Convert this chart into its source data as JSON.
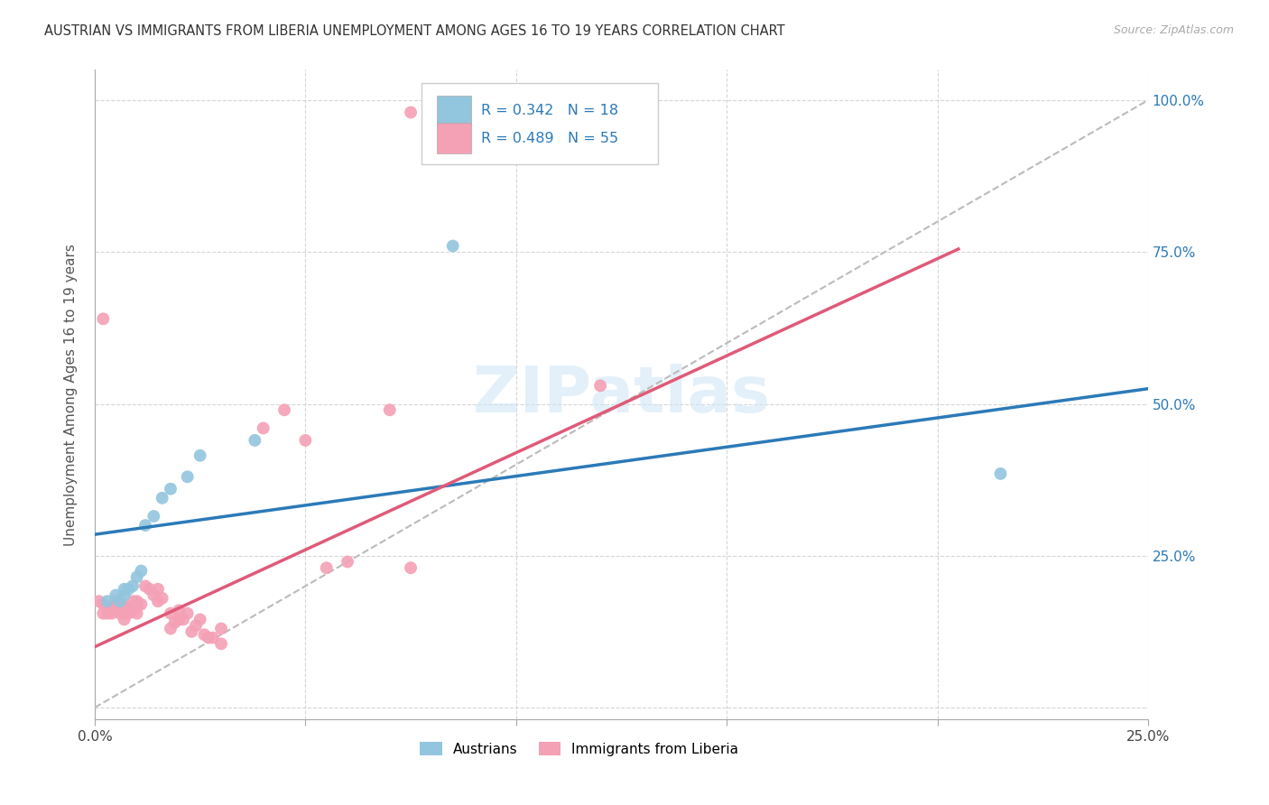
{
  "title": "AUSTRIAN VS IMMIGRANTS FROM LIBERIA UNEMPLOYMENT AMONG AGES 16 TO 19 YEARS CORRELATION CHART",
  "source": "Source: ZipAtlas.com",
  "ylabel": "Unemployment Among Ages 16 to 19 years",
  "xmin": 0.0,
  "xmax": 0.25,
  "ymin": -0.02,
  "ymax": 1.05,
  "x_ticks": [
    0.0,
    0.05,
    0.1,
    0.15,
    0.2,
    0.25
  ],
  "y_ticks": [
    0.0,
    0.25,
    0.5,
    0.75,
    1.0
  ],
  "y_tick_labels_right": [
    "",
    "25.0%",
    "50.0%",
    "75.0%",
    "100.0%"
  ],
  "legend_R_blue": "R = 0.342",
  "legend_N_blue": "N = 18",
  "legend_R_pink": "R = 0.489",
  "legend_N_pink": "N = 55",
  "legend_label_blue": "Austrians",
  "legend_label_pink": "Immigrants from Liberia",
  "blue_color": "#92c5de",
  "pink_color": "#f4a0b5",
  "blue_line_color": "#2b7ab8",
  "pink_line_color": "#e05a78",
  "text_color_blue": "#2b7ab8",
  "watermark": "ZIPatlas",
  "blue_dots": [
    [
      0.003,
      0.175
    ],
    [
      0.005,
      0.185
    ],
    [
      0.006,
      0.175
    ],
    [
      0.007,
      0.185
    ],
    [
      0.007,
      0.195
    ],
    [
      0.008,
      0.195
    ],
    [
      0.009,
      0.2
    ],
    [
      0.01,
      0.215
    ],
    [
      0.011,
      0.225
    ],
    [
      0.012,
      0.3
    ],
    [
      0.014,
      0.315
    ],
    [
      0.016,
      0.345
    ],
    [
      0.018,
      0.36
    ],
    [
      0.022,
      0.38
    ],
    [
      0.025,
      0.415
    ],
    [
      0.038,
      0.44
    ],
    [
      0.085,
      0.76
    ],
    [
      0.215,
      0.385
    ]
  ],
  "pink_dots": [
    [
      0.001,
      0.175
    ],
    [
      0.002,
      0.155
    ],
    [
      0.002,
      0.17
    ],
    [
      0.003,
      0.16
    ],
    [
      0.003,
      0.155
    ],
    [
      0.004,
      0.165
    ],
    [
      0.004,
      0.16
    ],
    [
      0.004,
      0.155
    ],
    [
      0.005,
      0.175
    ],
    [
      0.005,
      0.165
    ],
    [
      0.005,
      0.16
    ],
    [
      0.006,
      0.155
    ],
    [
      0.006,
      0.17
    ],
    [
      0.007,
      0.155
    ],
    [
      0.007,
      0.165
    ],
    [
      0.007,
      0.145
    ],
    [
      0.008,
      0.165
    ],
    [
      0.008,
      0.155
    ],
    [
      0.009,
      0.175
    ],
    [
      0.009,
      0.16
    ],
    [
      0.01,
      0.165
    ],
    [
      0.01,
      0.155
    ],
    [
      0.01,
      0.175
    ],
    [
      0.011,
      0.17
    ],
    [
      0.012,
      0.2
    ],
    [
      0.013,
      0.195
    ],
    [
      0.014,
      0.185
    ],
    [
      0.015,
      0.175
    ],
    [
      0.015,
      0.195
    ],
    [
      0.016,
      0.18
    ],
    [
      0.018,
      0.13
    ],
    [
      0.018,
      0.155
    ],
    [
      0.019,
      0.14
    ],
    [
      0.02,
      0.145
    ],
    [
      0.02,
      0.16
    ],
    [
      0.021,
      0.145
    ],
    [
      0.022,
      0.155
    ],
    [
      0.023,
      0.125
    ],
    [
      0.024,
      0.135
    ],
    [
      0.025,
      0.145
    ],
    [
      0.026,
      0.12
    ],
    [
      0.027,
      0.115
    ],
    [
      0.028,
      0.115
    ],
    [
      0.03,
      0.105
    ],
    [
      0.03,
      0.13
    ],
    [
      0.04,
      0.46
    ],
    [
      0.045,
      0.49
    ],
    [
      0.05,
      0.44
    ],
    [
      0.055,
      0.23
    ],
    [
      0.06,
      0.24
    ],
    [
      0.07,
      0.49
    ],
    [
      0.075,
      0.23
    ],
    [
      0.002,
      0.64
    ],
    [
      0.075,
      0.98
    ],
    [
      0.12,
      0.53
    ]
  ],
  "blue_line_x": [
    0.0,
    0.25
  ],
  "blue_line_y": [
    0.285,
    0.525
  ],
  "pink_line_x": [
    0.0,
    0.205
  ],
  "pink_line_y": [
    0.1,
    0.755
  ],
  "ref_line_x": [
    0.0,
    0.25
  ],
  "ref_line_y": [
    0.0,
    1.0
  ],
  "background_color": "#ffffff",
  "grid_color": "#cccccc"
}
